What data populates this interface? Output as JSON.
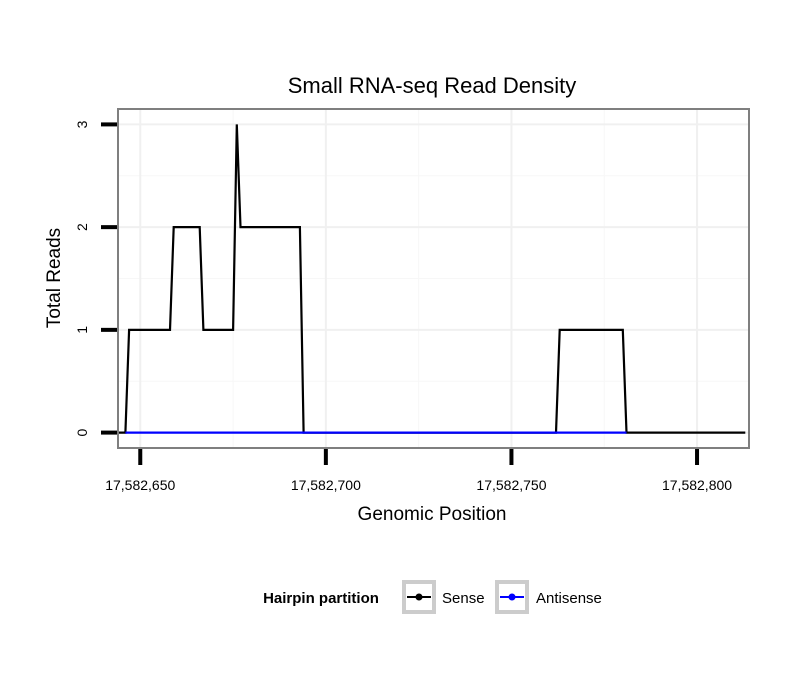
{
  "chart_data": {
    "type": "line",
    "title": "Small RNA-seq Read Density",
    "xlabel": "Genomic Position",
    "ylabel": "Total Reads",
    "xlim": [
      17582644,
      17582814
    ],
    "ylim": [
      -0.15,
      3.15
    ],
    "xticks": [
      17582650,
      17582700,
      17582750,
      17582800
    ],
    "xtick_labels": [
      "17,582,650",
      "17,582,700",
      "17,582,750",
      "17,582,800"
    ],
    "yticks": [
      0,
      1,
      2,
      3
    ],
    "ytick_labels": [
      "0",
      "1",
      "2",
      "3"
    ],
    "grid": true,
    "legend": {
      "title": "Hairpin partition",
      "position": "bottom",
      "entries": [
        "Sense",
        "Antisense"
      ]
    },
    "series": [
      {
        "name": "Sense",
        "color": "#000000",
        "x": [
          17582644,
          17582646,
          17582647,
          17582658,
          17582659,
          17582666,
          17582667,
          17582675,
          17582676,
          17582677,
          17582678,
          17582693,
          17582694,
          17582762,
          17582763,
          17582780,
          17582781,
          17582813
        ],
        "y": [
          0,
          0,
          1,
          1,
          2,
          2,
          1,
          1,
          3,
          2,
          2,
          2,
          0,
          0,
          1,
          1,
          0,
          0
        ]
      },
      {
        "name": "Antisense",
        "color": "#0000ff",
        "x": [
          17582646,
          17582694,
          17582762,
          17582781
        ],
        "y": [
          0,
          0,
          0,
          0
        ]
      }
    ]
  }
}
